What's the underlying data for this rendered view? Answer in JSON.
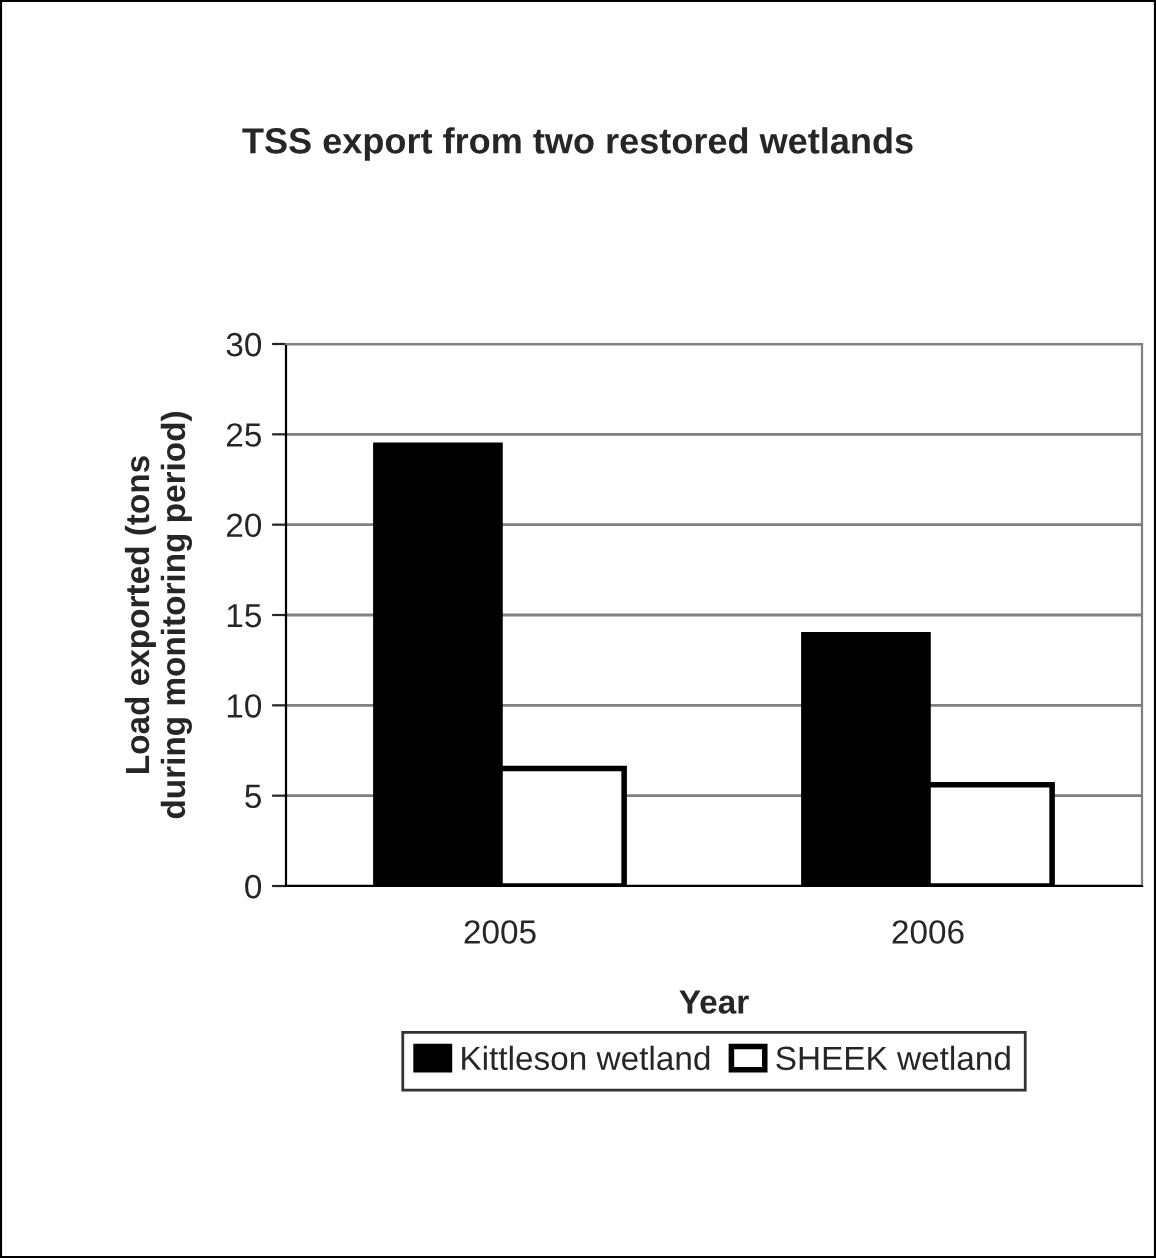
{
  "chart_data": {
    "type": "bar",
    "title": "TSS export from two restored wetlands",
    "xlabel": "Year",
    "ylabel": "Load exported (tons during monitoring period)",
    "categories": [
      "2005",
      "2006"
    ],
    "series": [
      {
        "name": "Kittleson wetland",
        "color": "#000000",
        "values": [
          24.4,
          13.9
        ]
      },
      {
        "name": "SHEEK wetland",
        "color": "#ffffff",
        "values": [
          6.5,
          5.6
        ]
      }
    ],
    "ylim": [
      0,
      30
    ],
    "yticks": [
      0,
      5,
      10,
      15,
      20,
      25,
      30
    ],
    "grid": "y",
    "legend": "bottom"
  }
}
